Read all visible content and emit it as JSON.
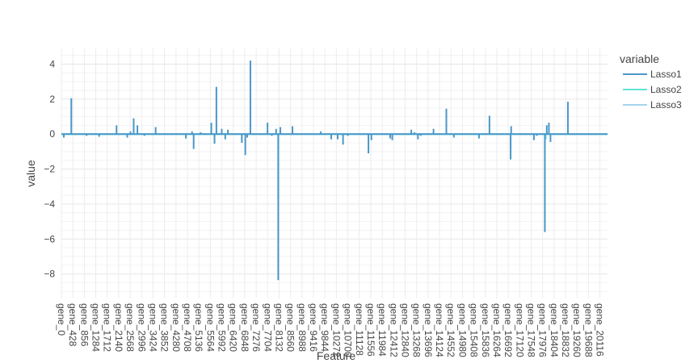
{
  "chart_data": {
    "type": "line",
    "xlabel": "Feature",
    "ylabel": "value",
    "legend_title": "variable",
    "legend_position": "right",
    "grid": true,
    "ylim": [
      -9.4,
      4.9
    ],
    "yticks": [
      4,
      2,
      0,
      -2,
      -4,
      -6,
      -8
    ],
    "x_index_max": 20400,
    "x_ticks": [
      {
        "index": 0,
        "label": "gene_0"
      },
      {
        "index": 428,
        "label": "gene_428"
      },
      {
        "index": 856,
        "label": "gene_856"
      },
      {
        "index": 1284,
        "label": "gene_1284"
      },
      {
        "index": 1712,
        "label": "gene_1712"
      },
      {
        "index": 2140,
        "label": "gene_2140"
      },
      {
        "index": 2568,
        "label": "gene_2568"
      },
      {
        "index": 2996,
        "label": "gene_2996"
      },
      {
        "index": 3424,
        "label": "gene_3424"
      },
      {
        "index": 3852,
        "label": "gene_3852"
      },
      {
        "index": 4280,
        "label": "gene_4280"
      },
      {
        "index": 4708,
        "label": "gene_4708"
      },
      {
        "index": 5136,
        "label": "gene_5136"
      },
      {
        "index": 5564,
        "label": "gene_5564"
      },
      {
        "index": 5992,
        "label": "gene_5992"
      },
      {
        "index": 6420,
        "label": "gene_6420"
      },
      {
        "index": 6848,
        "label": "gene_6848"
      },
      {
        "index": 7276,
        "label": "gene_7276"
      },
      {
        "index": 7704,
        "label": "gene_7704"
      },
      {
        "index": 8132,
        "label": "gene_8132"
      },
      {
        "index": 8560,
        "label": "gene_8560"
      },
      {
        "index": 8988,
        "label": "gene_8988"
      },
      {
        "index": 9416,
        "label": "gene_9416"
      },
      {
        "index": 9844,
        "label": "gene_9844"
      },
      {
        "index": 10272,
        "label": "gene_10272"
      },
      {
        "index": 10700,
        "label": "gene_10700"
      },
      {
        "index": 11128,
        "label": "gene_11128"
      },
      {
        "index": 11556,
        "label": "gene_11556"
      },
      {
        "index": 11984,
        "label": "gene_11984"
      },
      {
        "index": 12412,
        "label": "gene_12412"
      },
      {
        "index": 12840,
        "label": "gene_12840"
      },
      {
        "index": 13268,
        "label": "gene_13268"
      },
      {
        "index": 13696,
        "label": "gene_13696"
      },
      {
        "index": 14124,
        "label": "gene_14124"
      },
      {
        "index": 14552,
        "label": "gene_14552"
      },
      {
        "index": 14980,
        "label": "gene_14980"
      },
      {
        "index": 15408,
        "label": "gene_15408"
      },
      {
        "index": 15836,
        "label": "gene_15836"
      },
      {
        "index": 16264,
        "label": "gene_16264"
      },
      {
        "index": 16692,
        "label": "gene_16692"
      },
      {
        "index": 17120,
        "label": "gene_17120"
      },
      {
        "index": 17548,
        "label": "gene_17548"
      },
      {
        "index": 17976,
        "label": "gene_17976"
      },
      {
        "index": 18404,
        "label": "gene_18404"
      },
      {
        "index": 18832,
        "label": "gene_18832"
      },
      {
        "index": 19260,
        "label": "gene_19260"
      },
      {
        "index": 19688,
        "label": "gene_19688"
      },
      {
        "index": 20116,
        "label": "gene_20116"
      }
    ],
    "series": [
      {
        "name": "Lasso1",
        "color": "#4a97c9",
        "spikes": [
          {
            "x": 90,
            "y": -0.2
          },
          {
            "x": 370,
            "y": 2.05
          },
          {
            "x": 940,
            "y": -0.1
          },
          {
            "x": 1410,
            "y": -0.15
          },
          {
            "x": 2060,
            "y": 0.5
          },
          {
            "x": 2460,
            "y": -0.2
          },
          {
            "x": 2580,
            "y": 0.15
          },
          {
            "x": 2700,
            "y": 0.9
          },
          {
            "x": 2840,
            "y": 0.5
          },
          {
            "x": 3100,
            "y": -0.1
          },
          {
            "x": 3520,
            "y": 0.4
          },
          {
            "x": 4650,
            "y": -0.25
          },
          {
            "x": 4880,
            "y": 0.15
          },
          {
            "x": 4940,
            "y": -0.85
          },
          {
            "x": 5200,
            "y": 0.1
          },
          {
            "x": 5600,
            "y": 0.65
          },
          {
            "x": 5720,
            "y": -0.55
          },
          {
            "x": 5790,
            "y": 2.7
          },
          {
            "x": 5990,
            "y": 0.3
          },
          {
            "x": 6120,
            "y": -0.3
          },
          {
            "x": 6220,
            "y": 0.25
          },
          {
            "x": 6740,
            "y": -0.5
          },
          {
            "x": 6870,
            "y": -1.2
          },
          {
            "x": 6940,
            "y": -0.2
          },
          {
            "x": 7060,
            "y": 4.2
          },
          {
            "x": 7700,
            "y": 0.65
          },
          {
            "x": 7860,
            "y": -0.1
          },
          {
            "x": 8020,
            "y": 0.3
          },
          {
            "x": 8100,
            "y": -8.35
          },
          {
            "x": 8180,
            "y": 0.4
          },
          {
            "x": 8630,
            "y": 0.45
          },
          {
            "x": 9690,
            "y": 0.15
          },
          {
            "x": 10080,
            "y": -0.3
          },
          {
            "x": 10320,
            "y": -0.3
          },
          {
            "x": 10520,
            "y": -0.6
          },
          {
            "x": 10700,
            "y": -0.1
          },
          {
            "x": 11470,
            "y": -1.1
          },
          {
            "x": 11580,
            "y": -0.35
          },
          {
            "x": 12280,
            "y": -0.25
          },
          {
            "x": 12360,
            "y": -0.35
          },
          {
            "x": 13070,
            "y": 0.25
          },
          {
            "x": 13190,
            "y": 0.1
          },
          {
            "x": 13320,
            "y": -0.3
          },
          {
            "x": 13420,
            "y": -0.1
          },
          {
            "x": 13900,
            "y": 0.3
          },
          {
            "x": 14380,
            "y": 1.45
          },
          {
            "x": 14660,
            "y": -0.2
          },
          {
            "x": 15600,
            "y": -0.25
          },
          {
            "x": 15990,
            "y": 1.05
          },
          {
            "x": 16800,
            "y": 0.45
          },
          {
            "x": 16780,
            "y": -1.45
          },
          {
            "x": 17650,
            "y": -0.35
          },
          {
            "x": 17760,
            "y": -0.1
          },
          {
            "x": 18060,
            "y": -5.6
          },
          {
            "x": 18130,
            "y": 0.5
          },
          {
            "x": 18210,
            "y": 0.65
          },
          {
            "x": 18270,
            "y": -0.45
          },
          {
            "x": 18920,
            "y": 1.85
          }
        ]
      },
      {
        "name": "Lasso2",
        "color": "#5fe3d4",
        "spikes": [
          {
            "x": 8100,
            "y": -3.7
          },
          {
            "x": 18090,
            "y": -0.3
          }
        ]
      },
      {
        "name": "Lasso3",
        "color": "#a7d3ef",
        "spikes": []
      }
    ]
  }
}
